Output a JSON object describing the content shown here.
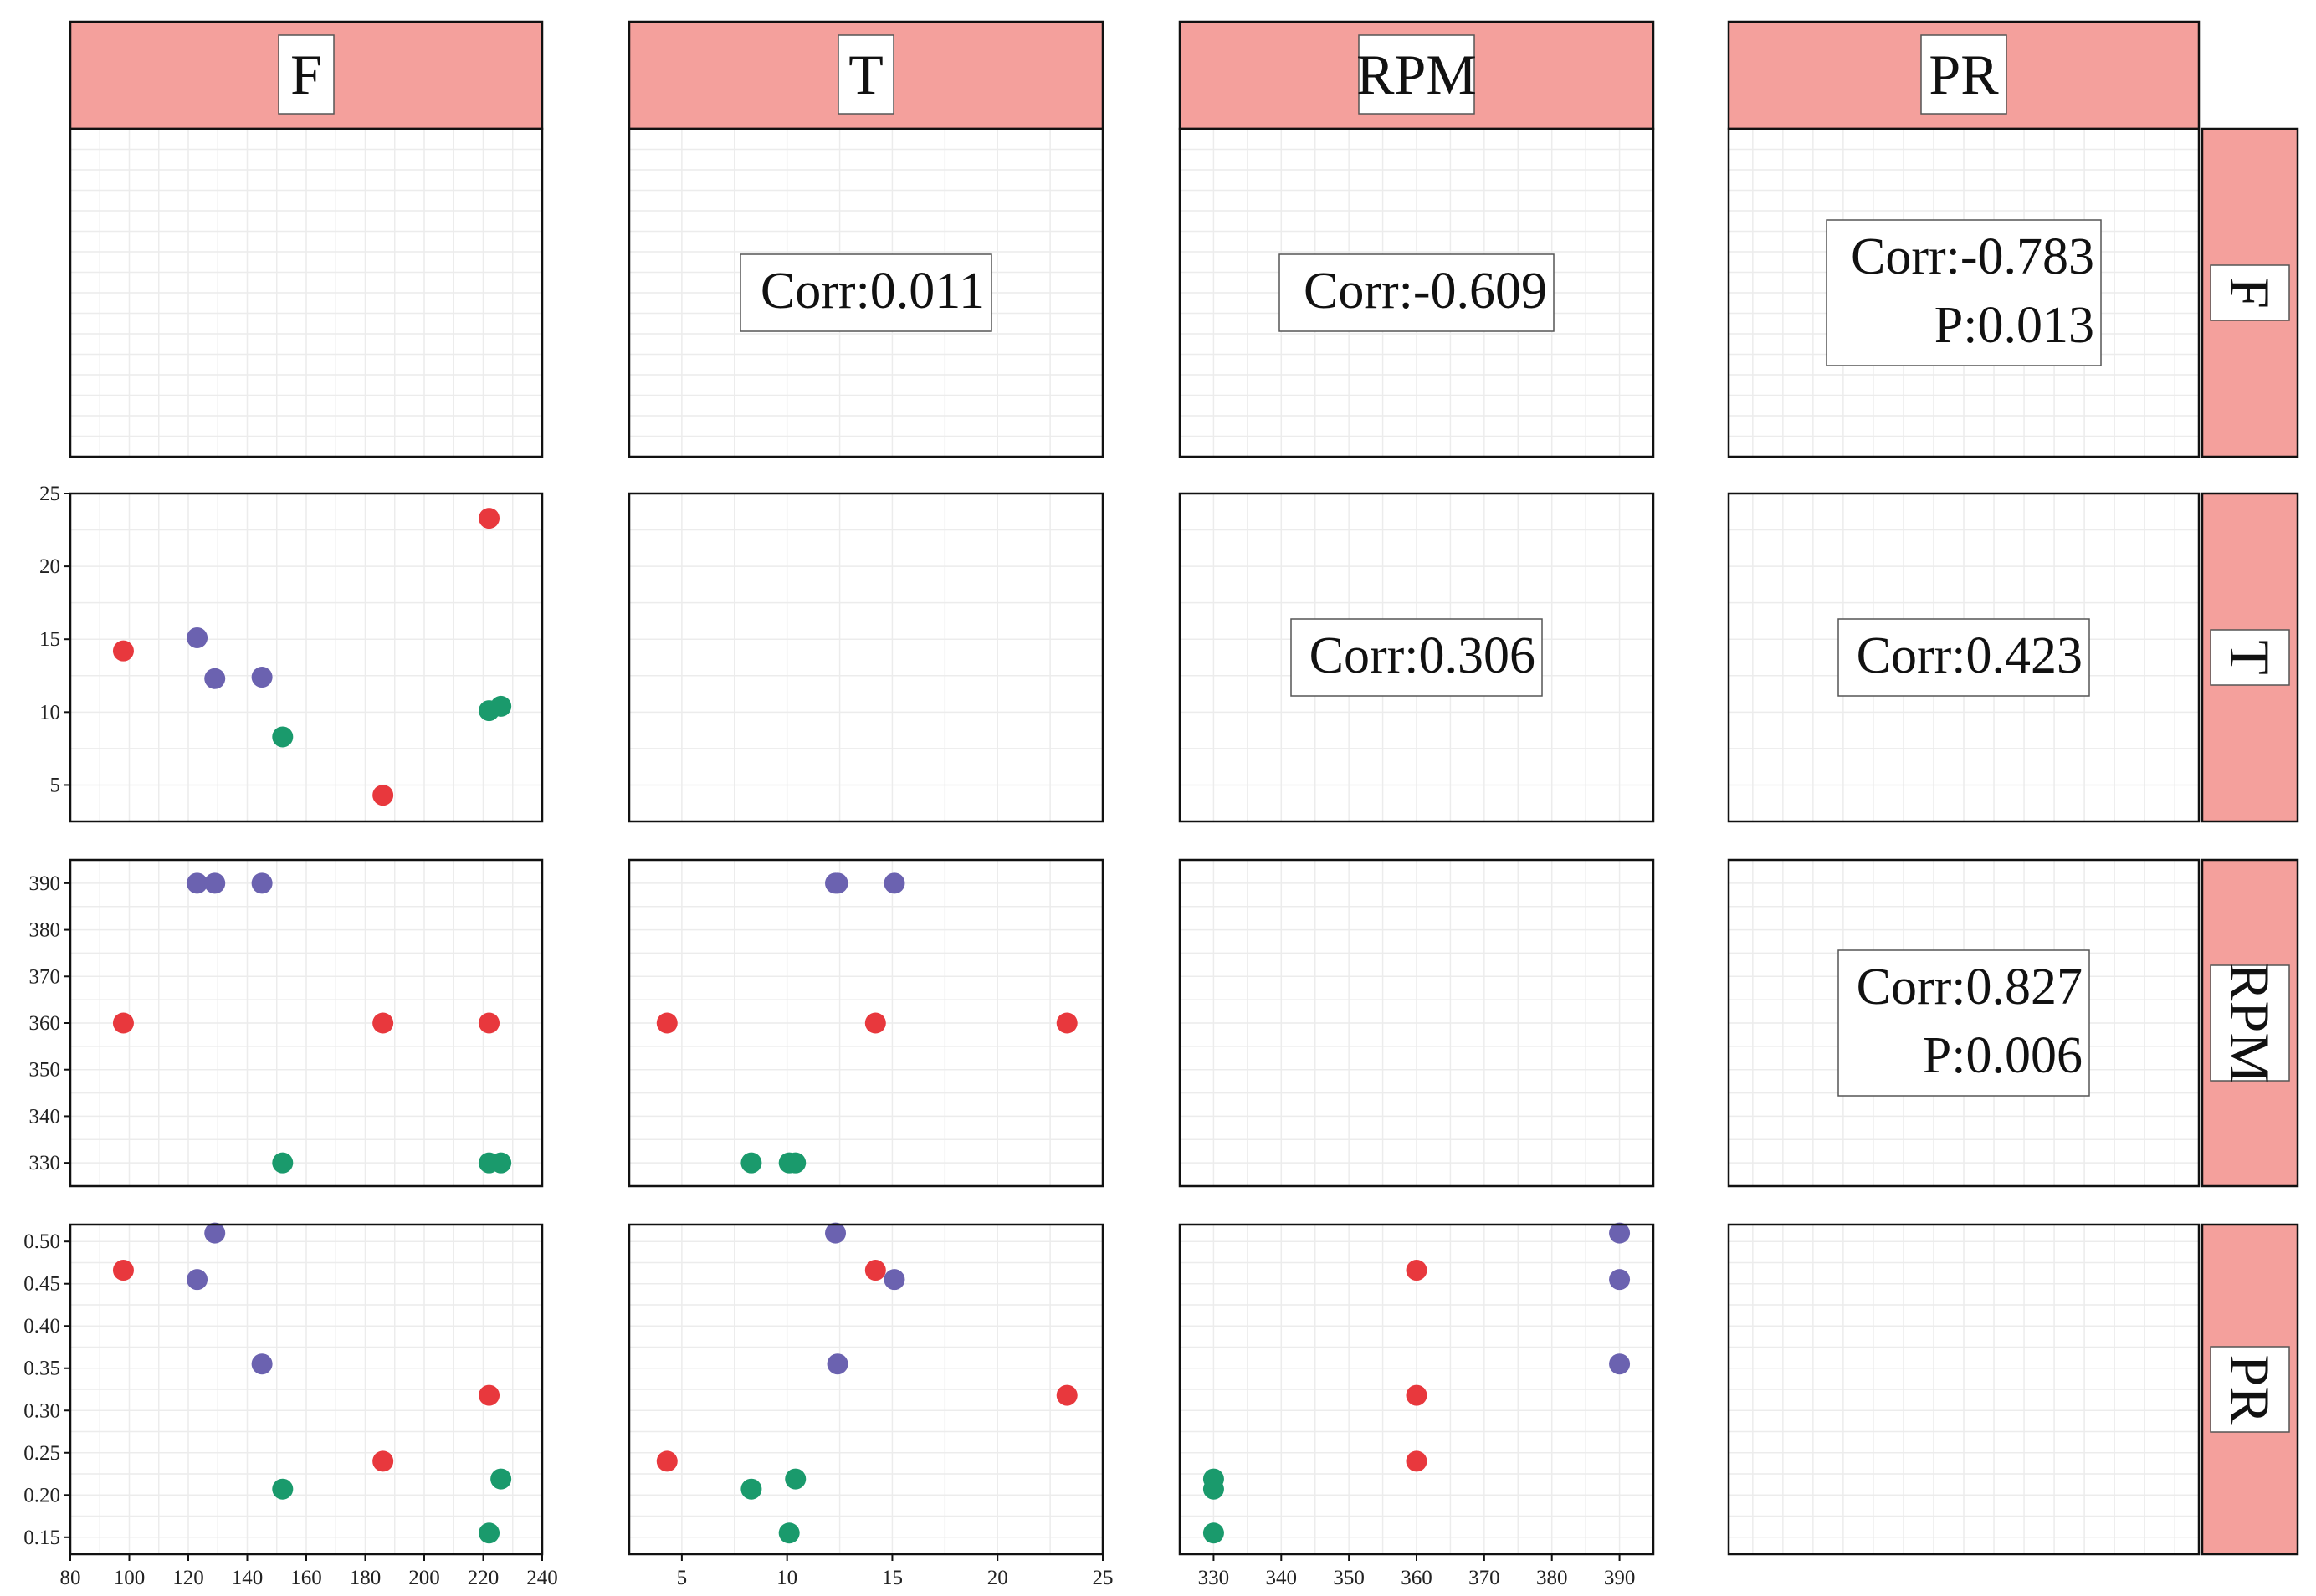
{
  "variables": [
    "F",
    "T",
    "RPM",
    "PR"
  ],
  "colors": {
    "strip_fill": "#f4a09c",
    "red": "#e8383d",
    "purple": "#6b62b0",
    "green": "#1a9a6c",
    "grid": "#ececec"
  },
  "correlations": [
    {
      "row": 0,
      "col": 1,
      "corr": "Corr:0.011"
    },
    {
      "row": 0,
      "col": 2,
      "corr": "Corr:-0.609"
    },
    {
      "row": 0,
      "col": 3,
      "corr": "Corr:-0.783",
      "p": "P:0.013"
    },
    {
      "row": 1,
      "col": 2,
      "corr": "Corr:0.306"
    },
    {
      "row": 1,
      "col": 3,
      "corr": "Corr:0.423"
    },
    {
      "row": 2,
      "col": 3,
      "corr": "Corr:0.827",
      "p": "P:0.006"
    }
  ],
  "chart_data": {
    "type": "scatter",
    "variables": [
      "F",
      "T",
      "RPM",
      "PR"
    ],
    "axes": {
      "F": {
        "lim": [
          80,
          240
        ],
        "ticks": [
          80,
          100,
          120,
          140,
          160,
          180,
          200,
          220,
          240
        ]
      },
      "T": {
        "lim": [
          2.5,
          25
        ],
        "ticks": [
          5,
          10,
          15,
          20,
          25
        ]
      },
      "RPM": {
        "lim": [
          325,
          395
        ],
        "ticks": [
          330,
          340,
          350,
          360,
          370,
          380,
          390
        ]
      },
      "PR": {
        "lim": [
          0.13,
          0.52
        ],
        "ticks": [
          0.15,
          0.2,
          0.25,
          0.3,
          0.35,
          0.4,
          0.45,
          0.5
        ]
      }
    },
    "points": [
      {
        "group": "red",
        "F": 98,
        "T": 14.2,
        "RPM": 360,
        "PR": 0.466
      },
      {
        "group": "red",
        "F": 186,
        "T": 4.3,
        "RPM": 360,
        "PR": 0.24
      },
      {
        "group": "red",
        "F": 222,
        "T": 23.3,
        "RPM": 360,
        "PR": 0.318
      },
      {
        "group": "purple",
        "F": 123,
        "T": 15.1,
        "RPM": 390,
        "PR": 0.455
      },
      {
        "group": "purple",
        "F": 129,
        "T": 12.3,
        "RPM": 390,
        "PR": 0.51
      },
      {
        "group": "purple",
        "F": 145,
        "T": 12.4,
        "RPM": 390,
        "PR": 0.355
      },
      {
        "group": "green",
        "F": 152,
        "T": 8.3,
        "RPM": 330,
        "PR": 0.207
      },
      {
        "group": "green",
        "F": 222,
        "T": 10.1,
        "RPM": 330,
        "PR": 0.155
      },
      {
        "group": "green",
        "F": 226,
        "T": 10.4,
        "RPM": 330,
        "PR": 0.219
      }
    ],
    "grid": true
  }
}
